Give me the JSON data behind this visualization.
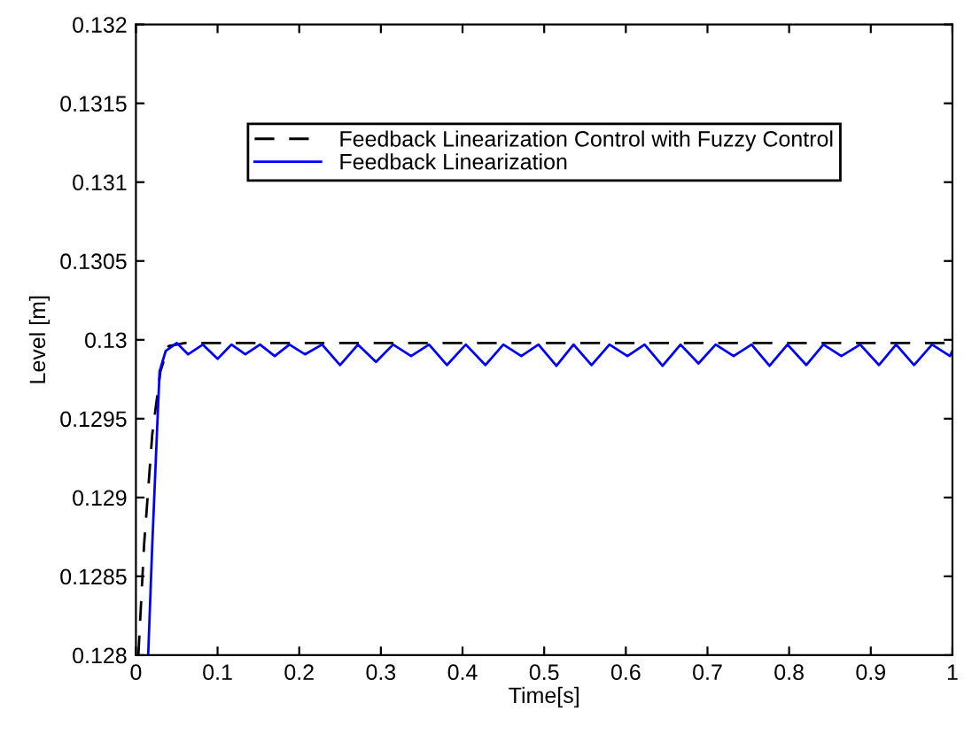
{
  "chart_data": {
    "type": "line",
    "xlabel": "Time[s]",
    "ylabel": "Level [m]",
    "xlim": [
      0,
      1
    ],
    "ylim": [
      0.128,
      0.132
    ],
    "xticks": [
      0,
      0.1,
      0.2,
      0.3,
      0.4,
      0.5,
      0.6,
      0.7,
      0.8,
      0.9,
      1
    ],
    "yticks": [
      0.128,
      0.1285,
      0.129,
      0.1295,
      0.13,
      0.1305,
      0.131,
      0.1315,
      0.132
    ],
    "grid": false,
    "legend": "top",
    "marker": "none",
    "series": [
      {
        "name": "Feedback Linearization Control with Fuzzy Control",
        "color": "#000000",
        "line_style": "dashed",
        "x": [
          0.003,
          0.01,
          0.02,
          0.03,
          0.04,
          0.06,
          1
        ],
        "values": [
          0.128,
          0.1287,
          0.1294,
          0.1298,
          0.12996,
          0.12998,
          0.12998
        ]
      },
      {
        "name": "Feedback Linearization",
        "color": "#0000ff",
        "line_style": "solid",
        "x": [
          0.015,
          0.02,
          0.026,
          0.029,
          0.0365,
          0.05,
          0.064,
          0.082,
          0.1,
          0.117,
          0.134,
          0.152,
          0.17,
          0.188,
          0.207,
          0.228,
          0.25,
          0.272,
          0.294,
          0.315,
          0.337,
          0.359,
          0.381,
          0.404,
          0.428,
          0.45,
          0.472,
          0.493,
          0.515,
          0.536,
          0.558,
          0.58,
          0.602,
          0.623,
          0.645,
          0.667,
          0.689,
          0.71,
          0.732,
          0.754,
          0.776,
          0.798,
          0.821,
          0.842,
          0.864,
          0.887,
          0.91,
          0.931,
          0.953,
          0.975,
          0.997,
          1
        ],
        "values": [
          0.128,
          0.1287,
          0.12944,
          0.1298,
          0.12993,
          0.12998,
          0.129908,
          0.12997,
          0.129879,
          0.12997,
          0.129908,
          0.12997,
          0.129897,
          0.12997,
          0.129908,
          0.12997,
          0.12984,
          0.12997,
          0.12986,
          0.12997,
          0.129897,
          0.12997,
          0.12984,
          0.12997,
          0.12984,
          0.12997,
          0.129897,
          0.12997,
          0.129835,
          0.12997,
          0.12984,
          0.12997,
          0.129897,
          0.12997,
          0.129835,
          0.12997,
          0.12985,
          0.12997,
          0.129897,
          0.12997,
          0.129835,
          0.12997,
          0.12984,
          0.12997,
          0.129897,
          0.12997,
          0.12984,
          0.12997,
          0.12984,
          0.12997,
          0.129897,
          0.12993
        ]
      }
    ]
  }
}
